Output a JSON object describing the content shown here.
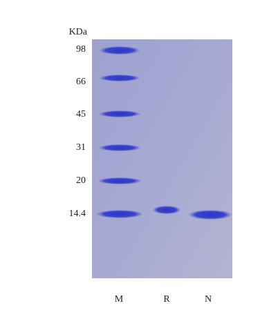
{
  "unit_label": "KDa",
  "markers": [
    "98",
    "66",
    "45",
    "31",
    "20",
    "14.4"
  ],
  "lanes": [
    "M",
    "R",
    "N"
  ]
}
